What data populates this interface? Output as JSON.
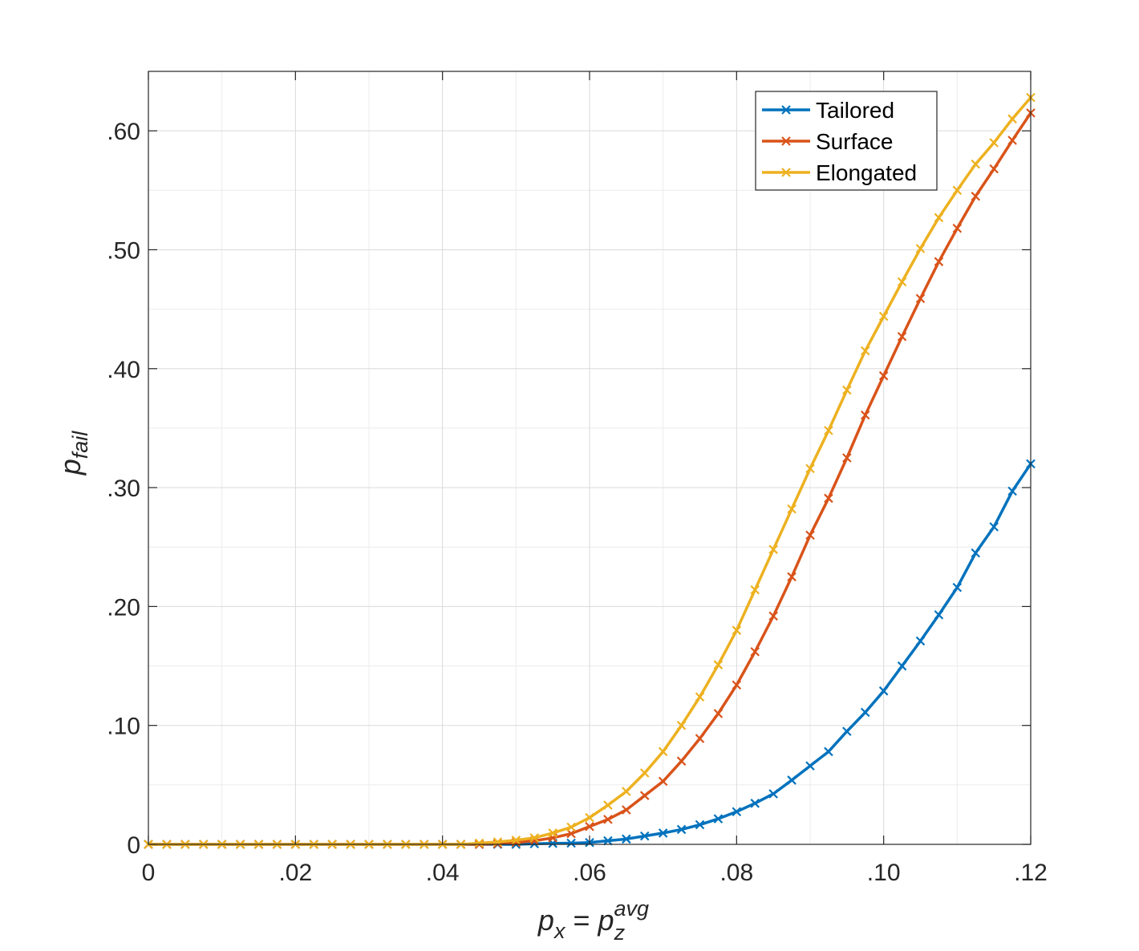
{
  "chart_data": {
    "type": "line",
    "title": "",
    "xlabel": {
      "base": "p",
      "sub": "x",
      "eq": " = ",
      "base2": "p",
      "sub2": "z",
      "sup2": "avg"
    },
    "ylabel": {
      "base": "p",
      "sub": "fail"
    },
    "xlim": [
      0,
      0.12
    ],
    "ylim": [
      0,
      0.65
    ],
    "grid": true,
    "legend_position": "top-right",
    "x_ticks": [
      0,
      0.02,
      0.04,
      0.06,
      0.08,
      0.1,
      0.12
    ],
    "x_tick_labels": [
      "0",
      ".02",
      ".04",
      ".06",
      ".08",
      ".10",
      ".12"
    ],
    "y_ticks": [
      0,
      0.1,
      0.2,
      0.3,
      0.4,
      0.5,
      0.6
    ],
    "y_tick_labels": [
      "0",
      ".10",
      ".20",
      ".30",
      ".40",
      ".50",
      ".60"
    ],
    "x": [
      0,
      0.0025,
      0.005,
      0.0075,
      0.01,
      0.0125,
      0.015,
      0.0175,
      0.02,
      0.0225,
      0.025,
      0.0275,
      0.03,
      0.0325,
      0.035,
      0.0375,
      0.04,
      0.0425,
      0.045,
      0.0475,
      0.05,
      0.0525,
      0.055,
      0.0575,
      0.06,
      0.0625,
      0.065,
      0.0675,
      0.07,
      0.0725,
      0.075,
      0.0775,
      0.08,
      0.0825,
      0.085,
      0.0875,
      0.09,
      0.0925,
      0.095,
      0.0975,
      0.1,
      0.1025,
      0.105,
      0.1075,
      0.11,
      0.1125,
      0.115,
      0.1175,
      0.12
    ],
    "series": [
      {
        "name": "Tailored",
        "color": "#0072BD",
        "values": [
          0,
          0,
          0,
          0,
          0,
          0,
          0,
          0,
          0,
          0,
          0,
          0,
          0,
          0,
          0,
          0,
          0,
          0,
          0,
          0,
          0,
          0.0005,
          0.0008,
          0.001,
          0.0015,
          0.003,
          0.0045,
          0.007,
          0.0095,
          0.0125,
          0.0165,
          0.0215,
          0.0275,
          0.0345,
          0.0425,
          0.054,
          0.066,
          0.078,
          0.095,
          0.111,
          0.129,
          0.15,
          0.171,
          0.193,
          0.216,
          0.245,
          0.267,
          0.297,
          0.32
        ]
      },
      {
        "name": "Surface",
        "color": "#D95319",
        "values": [
          0,
          0,
          0,
          0,
          0,
          0,
          0,
          0,
          0,
          0,
          0,
          0,
          0,
          0,
          0,
          0,
          0,
          0,
          0,
          0.0005,
          0.0015,
          0.003,
          0.0055,
          0.009,
          0.015,
          0.021,
          0.029,
          0.041,
          0.053,
          0.07,
          0.089,
          0.11,
          0.134,
          0.162,
          0.192,
          0.225,
          0.26,
          0.291,
          0.325,
          0.361,
          0.394,
          0.427,
          0.459,
          0.49,
          0.518,
          0.545,
          0.568,
          0.592,
          0.615
        ]
      },
      {
        "name": "Elongated",
        "color": "#EDB120",
        "values": [
          0,
          0,
          0,
          0,
          0,
          0,
          0,
          0,
          0,
          0,
          0,
          0,
          0,
          0,
          0,
          0,
          0,
          0,
          0.001,
          0.002,
          0.0035,
          0.0055,
          0.0095,
          0.0145,
          0.0225,
          0.033,
          0.0445,
          0.06,
          0.078,
          0.1,
          0.124,
          0.151,
          0.18,
          0.214,
          0.248,
          0.282,
          0.316,
          0.348,
          0.382,
          0.415,
          0.444,
          0.473,
          0.501,
          0.527,
          0.55,
          0.572,
          0.59,
          0.61,
          0.628
        ]
      }
    ]
  }
}
